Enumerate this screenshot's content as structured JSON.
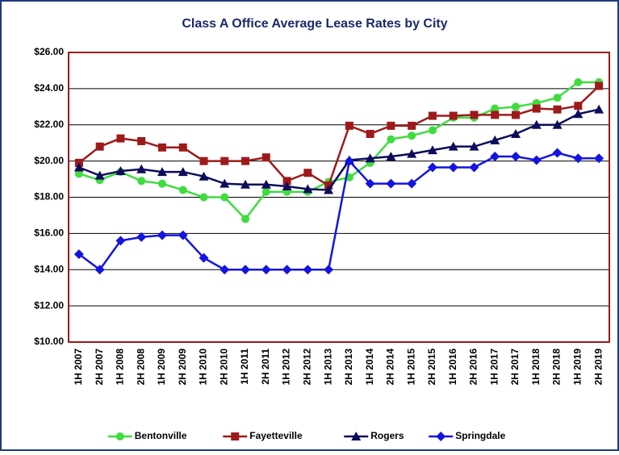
{
  "chart_data": {
    "type": "line",
    "title": "Class A Office Average Lease Rates by City",
    "categories": [
      "1H 2007",
      "2H 2007",
      "1H 2008",
      "2H 2008",
      "1H 2009",
      "2H 2009",
      "1H 2010",
      "2H 2010",
      "1H 2011",
      "2H 2011",
      "1H 2012",
      "2H 2012",
      "1H 2013",
      "2H 2013",
      "1H 2014",
      "2H 2014",
      "1H 2015",
      "2H 2015",
      "1H 2016",
      "2H 2016",
      "1H 2017",
      "2H 2017",
      "1H 2018",
      "2H 2018",
      "1H 2019",
      "2H 2019"
    ],
    "series": [
      {
        "name": "Bentonville",
        "color": "#3fdc3f",
        "marker": "circle",
        "values": [
          19.3,
          18.95,
          19.4,
          18.9,
          18.75,
          18.4,
          18.0,
          18.0,
          16.8,
          18.3,
          18.3,
          18.3,
          18.85,
          19.1,
          19.9,
          21.2,
          21.4,
          21.7,
          22.4,
          22.4,
          22.9,
          23.0,
          23.2,
          23.5,
          24.35,
          24.35
        ]
      },
      {
        "name": "Fayetteville",
        "color": "#9e1a1a",
        "marker": "square",
        "values": [
          19.9,
          20.8,
          21.25,
          21.1,
          20.75,
          20.75,
          20.0,
          20.0,
          20.0,
          20.2,
          18.9,
          19.35,
          18.65,
          21.95,
          21.5,
          21.95,
          21.95,
          22.5,
          22.5,
          22.55,
          22.55,
          22.55,
          22.9,
          22.85,
          23.05,
          24.15
        ]
      },
      {
        "name": "Rogers",
        "color": "#0c0c5c",
        "marker": "triangle",
        "values": [
          19.65,
          19.2,
          19.45,
          19.55,
          19.4,
          19.4,
          19.15,
          18.75,
          18.7,
          18.7,
          18.6,
          18.45,
          18.4,
          20.05,
          20.15,
          20.25,
          20.4,
          20.6,
          20.8,
          20.8,
          21.15,
          21.5,
          22.0,
          22.0,
          22.6,
          22.85
        ]
      },
      {
        "name": "Springdale",
        "color": "#1414e0",
        "marker": "diamond",
        "values": [
          14.85,
          14.0,
          15.6,
          15.8,
          15.9,
          15.9,
          14.65,
          14.0,
          14.0,
          14.0,
          14.0,
          14.0,
          14.0,
          20.0,
          18.75,
          18.75,
          18.75,
          19.65,
          19.65,
          19.65,
          20.25,
          20.25,
          20.05,
          20.45,
          20.15,
          20.15
        ]
      }
    ],
    "ylim": [
      10,
      26
    ],
    "yticks": [
      {
        "value": 10,
        "label": "$10.00"
      },
      {
        "value": 12,
        "label": "$12.00"
      },
      {
        "value": 14,
        "label": "$14.00"
      },
      {
        "value": 16,
        "label": "$16.00"
      },
      {
        "value": 18,
        "label": "$18.00"
      },
      {
        "value": 20,
        "label": "$20.00"
      },
      {
        "value": 22,
        "label": "$22.00"
      },
      {
        "value": 24,
        "label": "$24.00"
      },
      {
        "value": 26,
        "label": "$26.00"
      }
    ],
    "grid": true,
    "legend": "bottom"
  }
}
